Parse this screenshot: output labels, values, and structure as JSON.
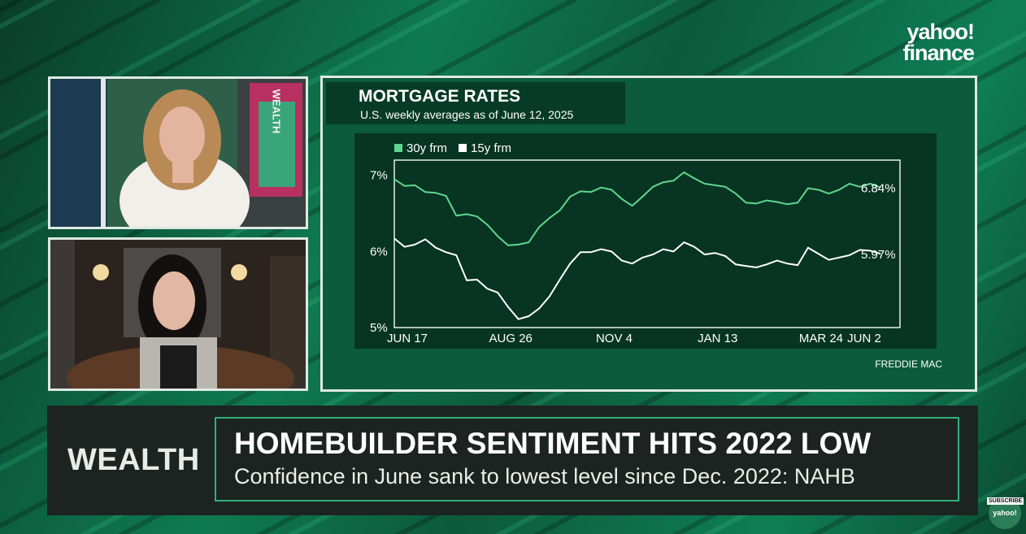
{
  "brand": {
    "logo_line1": "yahoo!",
    "logo_line2": "finance",
    "subscribe": "SUBSCRIBE",
    "badge_text": "yahoo!"
  },
  "host_panel": {
    "backdrop_text": "WEALTH"
  },
  "chart_panel": {
    "title": "MORTGAGE RATES",
    "subtitle": "U.S. weekly averages as of June 12, 2025",
    "source": "FREDDIE MAC"
  },
  "chart_data": {
    "type": "line",
    "title": "MORTGAGE RATES",
    "subtitle": "U.S. weekly averages as of June 12, 2025",
    "x_tick_labels": [
      "JUN 17",
      "AUG 26",
      "NOV 4",
      "JAN 13",
      "MAR 24",
      "JUN 2"
    ],
    "y_tick_labels": [
      "7%",
      "6%",
      "5%"
    ],
    "ylim": [
      5,
      7.2
    ],
    "legend_placement": "top-left",
    "series": [
      {
        "name": "30y frm",
        "color": "#5fd68f",
        "end_label": "6.84%",
        "values": [
          6.95,
          6.86,
          6.87,
          6.78,
          6.77,
          6.73,
          6.47,
          6.49,
          6.46,
          6.35,
          6.2,
          6.08,
          6.09,
          6.12,
          6.32,
          6.44,
          6.54,
          6.72,
          6.79,
          6.78,
          6.84,
          6.81,
          6.69,
          6.6,
          6.72,
          6.85,
          6.91,
          6.93,
          7.04,
          6.96,
          6.89,
          6.87,
          6.85,
          6.76,
          6.64,
          6.63,
          6.67,
          6.65,
          6.62,
          6.64,
          6.83,
          6.81,
          6.76,
          6.81,
          6.89,
          6.85,
          6.89,
          6.84
        ]
      },
      {
        "name": "15y frm",
        "color": "#ffffff",
        "end_label": "5.97%",
        "values": [
          6.17,
          6.06,
          6.09,
          6.16,
          6.05,
          5.99,
          5.95,
          5.62,
          5.63,
          5.51,
          5.46,
          5.27,
          5.11,
          5.15,
          5.25,
          5.41,
          5.63,
          5.84,
          5.99,
          5.99,
          6.03,
          6.0,
          5.88,
          5.84,
          5.92,
          5.96,
          6.03,
          6.0,
          6.12,
          6.06,
          5.96,
          5.98,
          5.94,
          5.83,
          5.81,
          5.79,
          5.83,
          5.88,
          5.84,
          5.82,
          6.05,
          5.97,
          5.89,
          5.92,
          5.95,
          6.02,
          6.01,
          5.97
        ]
      }
    ]
  },
  "lower_third": {
    "section": "WEALTH",
    "headline": "HOMEBUILDER SENTIMENT HITS 2022 LOW",
    "subline": "Confidence in June sank to lowest level since Dec. 2022: NAHB"
  }
}
